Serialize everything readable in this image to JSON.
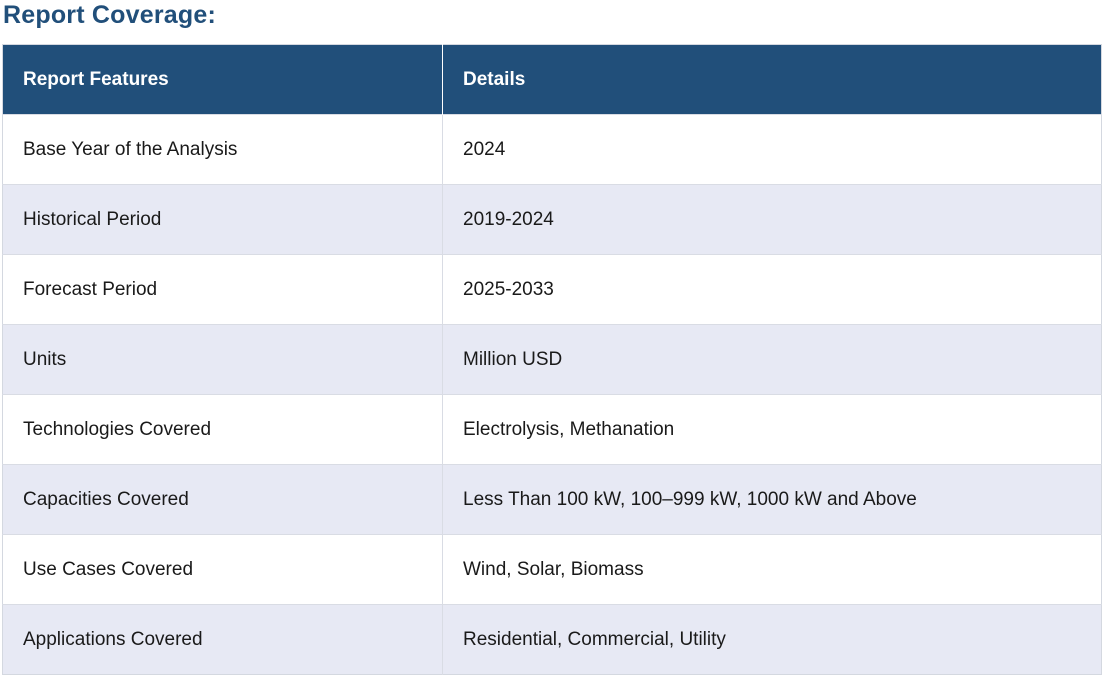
{
  "title": "Report Coverage:",
  "table": {
    "headers": [
      "Report Features",
      "Details"
    ],
    "rows": [
      {
        "feature": "Base Year of the Analysis",
        "details": "2024"
      },
      {
        "feature": "Historical Period",
        "details": "2019-2024"
      },
      {
        "feature": "Forecast Period",
        "details": "2025-2033"
      },
      {
        "feature": "Units",
        "details": "Million USD"
      },
      {
        "feature": "Technologies Covered",
        "details": "Electrolysis, Methanation"
      },
      {
        "feature": "Capacities Covered",
        "details": "Less Than 100 kW, 100–999 kW, 1000 kW and Above"
      },
      {
        "feature": "Use Cases Covered",
        "details": "Wind, Solar, Biomass"
      },
      {
        "feature": "Applications Covered",
        "details": "Residential, Commercial, Utility"
      }
    ]
  }
}
